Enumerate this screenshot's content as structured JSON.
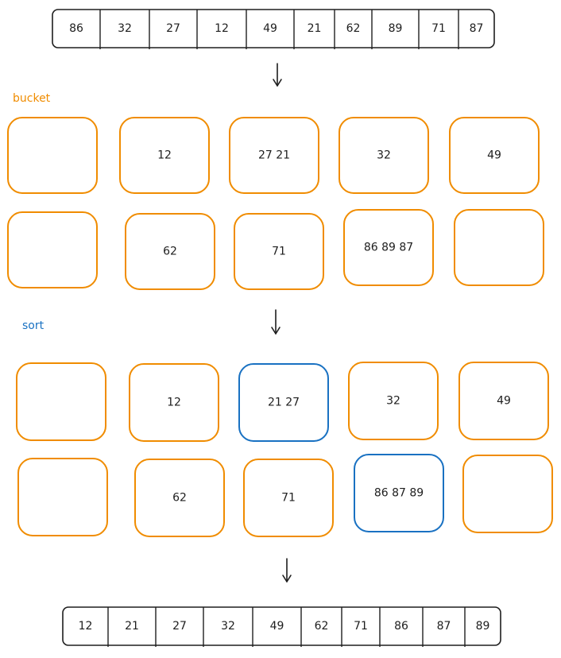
{
  "diagram": {
    "input_array": [
      "86",
      "32",
      "27",
      "12",
      "49",
      "21",
      "62",
      "89",
      "71",
      "87"
    ],
    "bucket_label": "bucket",
    "buckets": [
      "",
      "12",
      "27  21",
      "32",
      "49",
      "",
      "62",
      "71",
      "86 89 87",
      ""
    ],
    "sort_label": "sort",
    "sorted_buckets": [
      "",
      "12",
      "21   27",
      "32",
      "49",
      "",
      "62",
      "71",
      "86 87 89",
      ""
    ],
    "sorted_highlight": [
      false,
      false,
      true,
      false,
      false,
      false,
      false,
      false,
      true,
      false
    ],
    "output_array": [
      "12",
      "21",
      "27",
      "32",
      "49",
      "62",
      "71",
      "86",
      "87",
      "89"
    ],
    "colors": {
      "stroke": "#1e1e1e",
      "bucket": "#f08c00",
      "highlight": "#1971c2",
      "background": "#ffffff"
    }
  }
}
